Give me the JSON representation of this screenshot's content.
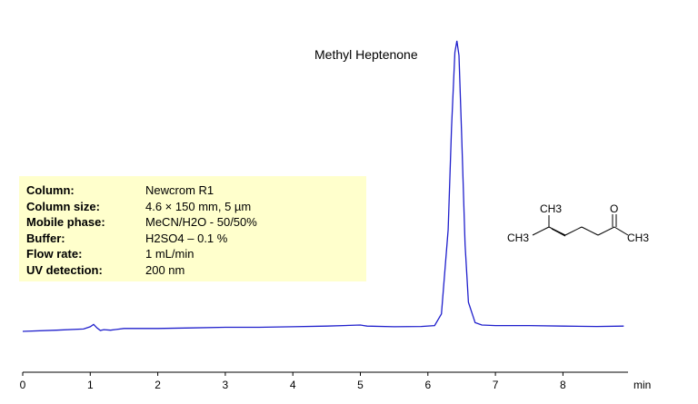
{
  "chart_data": {
    "type": "line",
    "annotation": "Methyl Heptenone",
    "x_unit": "min",
    "xlim": [
      0,
      9
    ],
    "x_ticks": [
      0,
      1,
      2,
      3,
      4,
      5,
      6,
      7,
      8
    ],
    "grid": false,
    "series": [
      {
        "color": "#1f1fcc",
        "x": [
          0,
          0.5,
          0.9,
          1.0,
          1.05,
          1.1,
          1.15,
          1.2,
          1.3,
          1.5,
          2.0,
          2.5,
          3.0,
          3.5,
          4.0,
          4.5,
          5.0,
          5.05,
          5.1,
          5.5,
          5.9,
          6.1,
          6.2,
          6.3,
          6.35,
          6.4,
          6.43,
          6.46,
          6.5,
          6.55,
          6.6,
          6.7,
          6.8,
          7.0,
          7.5,
          8.0,
          8.5,
          8.9
        ],
        "y": [
          0.0,
          0.004,
          0.008,
          0.016,
          0.024,
          0.012,
          0.003,
          0.006,
          0.004,
          0.01,
          0.01,
          0.012,
          0.014,
          0.014,
          0.016,
          0.018,
          0.022,
          0.02,
          0.018,
          0.016,
          0.017,
          0.02,
          0.06,
          0.35,
          0.7,
          0.96,
          1.0,
          0.95,
          0.68,
          0.3,
          0.1,
          0.03,
          0.022,
          0.02,
          0.02,
          0.018,
          0.017,
          0.018
        ]
      }
    ]
  },
  "conditions": [
    {
      "key": "Column:",
      "value": "Newcrom R1"
    },
    {
      "key": "Column size:",
      "value": "4.6 × 150 mm, 5 µm"
    },
    {
      "key": "Mobile phase:",
      "value": "MeCN/H2O - 50/50%"
    },
    {
      "key": "Buffer:",
      "value": "H2SO4 – 0.1 %"
    },
    {
      "key": "Flow rate:",
      "value": "1 mL/min"
    },
    {
      "key": "UV detection:",
      "value": "200 nm"
    }
  ],
  "molecule": {
    "atoms": {
      "ch3_top": "CH3",
      "ch3_left": "CH3",
      "oxygen": "O",
      "ch3_right": "CH3"
    }
  }
}
